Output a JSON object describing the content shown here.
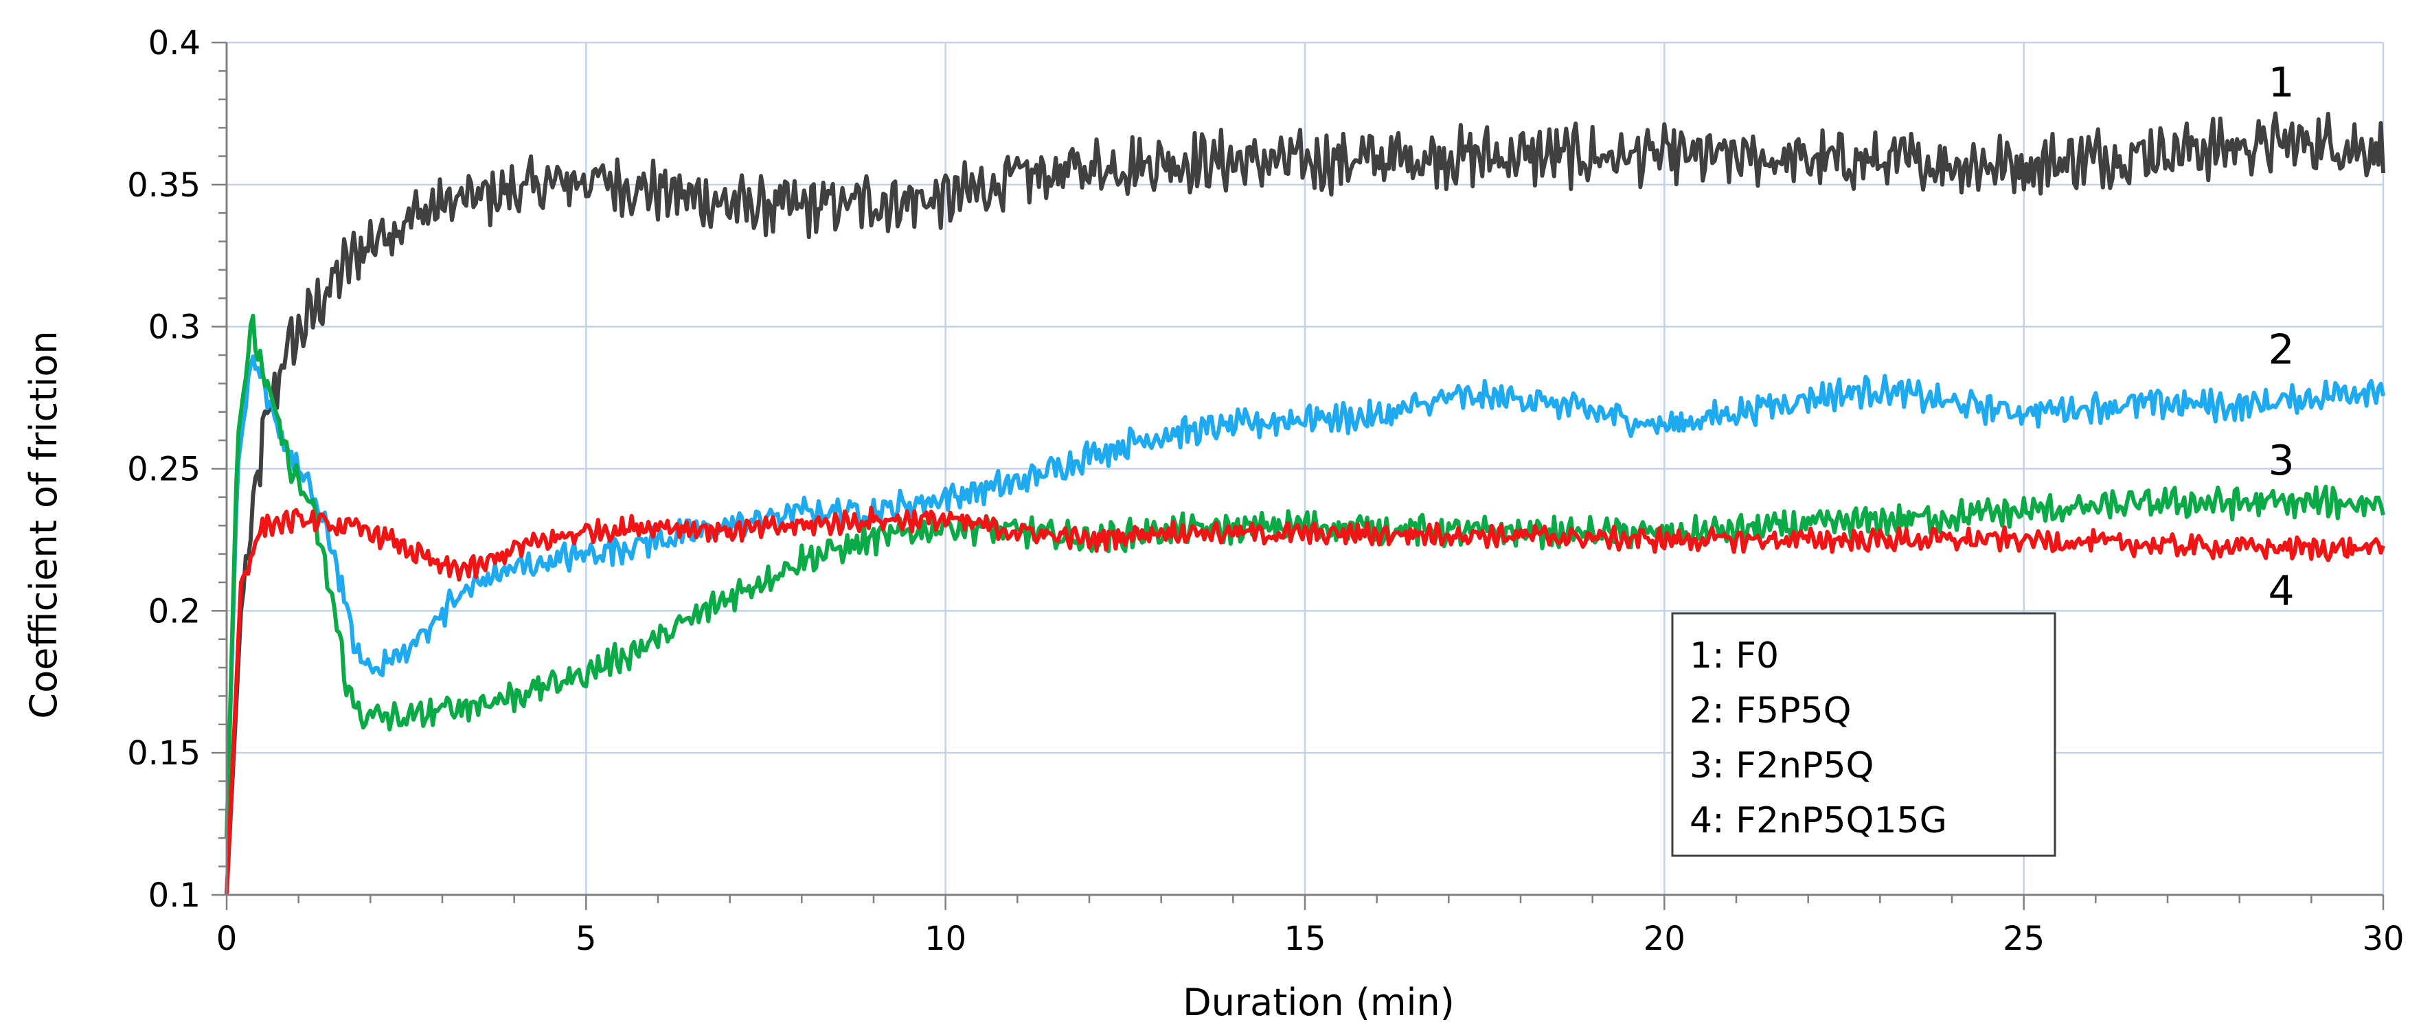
{
  "chart_data": {
    "type": "line",
    "title": "",
    "xlabel": "Duration (min)",
    "ylabel": "Coefficient of friction",
    "xlim": [
      0,
      30
    ],
    "ylim": [
      0.1,
      0.4
    ],
    "xticks": [
      "0",
      "5",
      "10",
      "15",
      "20",
      "25",
      "30"
    ],
    "yticks": [
      "0.1",
      "0.15",
      "0.2",
      "0.25",
      "0.3",
      "0.35",
      "0.4"
    ],
    "grid": true,
    "legend_position": "bottom-right",
    "series": [
      {
        "name": "1: F0",
        "label": "1",
        "color": "#404040",
        "noise_amplitude": 0.008,
        "x": [
          0,
          0.2,
          0.5,
          0.8,
          1.2,
          1.6,
          2,
          2.5,
          3,
          4,
          5,
          6,
          7,
          8,
          9,
          10,
          11,
          12,
          13,
          15,
          17,
          20,
          23,
          25,
          27,
          29,
          30
        ],
        "y": [
          0.1,
          0.2,
          0.26,
          0.29,
          0.305,
          0.32,
          0.33,
          0.338,
          0.343,
          0.348,
          0.352,
          0.348,
          0.343,
          0.342,
          0.344,
          0.345,
          0.352,
          0.356,
          0.358,
          0.358,
          0.36,
          0.36,
          0.358,
          0.357,
          0.362,
          0.365,
          0.362
        ]
      },
      {
        "name": "2: F5P5Q",
        "label": "2",
        "color": "#1eaaf0",
        "noise_amplitude": 0.004,
        "x": [
          0,
          0.15,
          0.35,
          0.6,
          0.9,
          1.2,
          1.5,
          1.8,
          2,
          2.5,
          3,
          3.5,
          4,
          5,
          6,
          7,
          8,
          9,
          10,
          11,
          12,
          13,
          14,
          15,
          16,
          17,
          18,
          19,
          20,
          21,
          22,
          23,
          24,
          25,
          26,
          27,
          28,
          29,
          30
        ],
        "y": [
          0.12,
          0.25,
          0.29,
          0.27,
          0.255,
          0.24,
          0.22,
          0.185,
          0.18,
          0.185,
          0.2,
          0.21,
          0.215,
          0.22,
          0.225,
          0.23,
          0.235,
          0.235,
          0.24,
          0.245,
          0.255,
          0.262,
          0.265,
          0.268,
          0.268,
          0.275,
          0.275,
          0.27,
          0.265,
          0.27,
          0.275,
          0.278,
          0.273,
          0.27,
          0.272,
          0.273,
          0.272,
          0.275,
          0.279
        ]
      },
      {
        "name": "3: F2nP5Q",
        "label": "3",
        "color": "#0aaa46",
        "noise_amplitude": 0.004,
        "x": [
          0,
          0.15,
          0.35,
          0.6,
          0.9,
          1.2,
          1.5,
          1.7,
          1.9,
          2.5,
          3,
          4,
          5,
          6,
          7,
          8,
          9,
          10,
          11,
          12,
          13,
          15,
          17,
          20,
          22,
          25,
          27,
          30
        ],
        "y": [
          0.12,
          0.26,
          0.3,
          0.275,
          0.25,
          0.235,
          0.2,
          0.17,
          0.163,
          0.162,
          0.165,
          0.17,
          0.178,
          0.19,
          0.205,
          0.218,
          0.225,
          0.23,
          0.228,
          0.225,
          0.228,
          0.23,
          0.228,
          0.227,
          0.23,
          0.235,
          0.238,
          0.238
        ]
      },
      {
        "name": "4: F2nP5Q15G",
        "label": "4",
        "color": "#f01414",
        "noise_amplitude": 0.003,
        "x": [
          0,
          0.2,
          0.5,
          1,
          1.5,
          2,
          2.5,
          3,
          3.5,
          4,
          5,
          6,
          7,
          8,
          9,
          10,
          11,
          12,
          13,
          15,
          17,
          20,
          23,
          25,
          27,
          29,
          30
        ],
        "y": [
          0.1,
          0.21,
          0.23,
          0.232,
          0.23,
          0.228,
          0.222,
          0.215,
          0.215,
          0.222,
          0.228,
          0.23,
          0.228,
          0.23,
          0.232,
          0.232,
          0.228,
          0.225,
          0.228,
          0.227,
          0.227,
          0.225,
          0.225,
          0.225,
          0.223,
          0.222,
          0.222
        ]
      }
    ],
    "legend": [
      "1: F0",
      "2: F5P5Q",
      "3: F2nP5Q",
      "4: F2nP5Q15G"
    ],
    "curve_labels": [
      {
        "text": "1",
        "x": 28.4,
        "y": 0.381
      },
      {
        "text": "2",
        "x": 28.4,
        "y": 0.287
      },
      {
        "text": "3",
        "x": 28.4,
        "y": 0.248
      },
      {
        "text": "4",
        "x": 28.4,
        "y": 0.202
      }
    ]
  }
}
